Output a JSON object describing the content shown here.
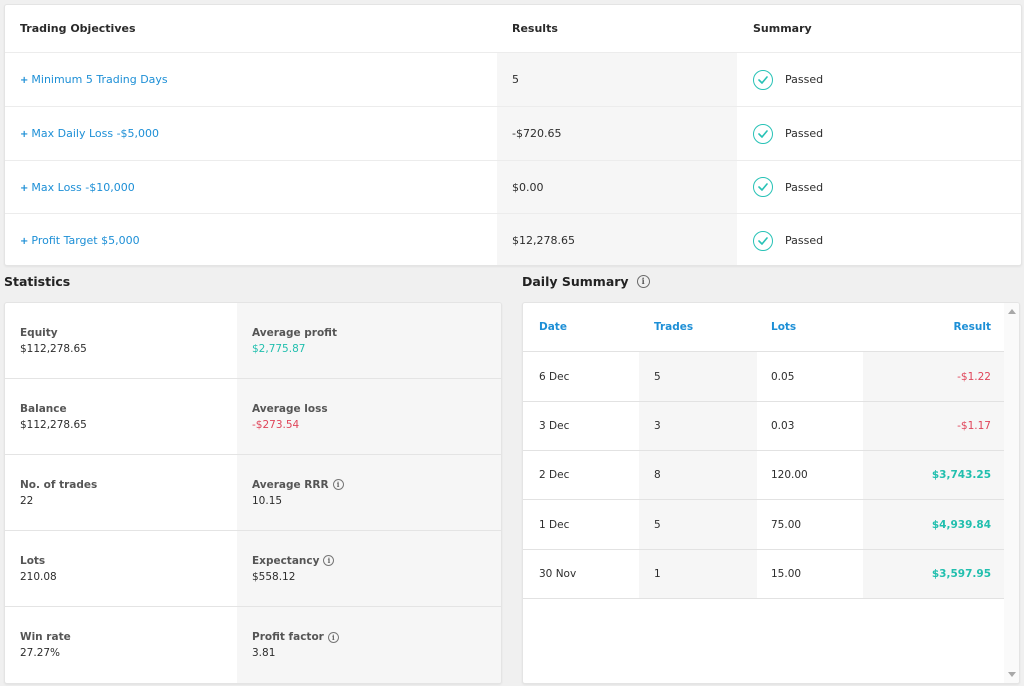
{
  "objectives": {
    "headers": {
      "objective": "Trading Objectives",
      "results": "Results",
      "summary": "Summary"
    },
    "rows": [
      {
        "objective": "Minimum 5 Trading Days",
        "result": "5",
        "summary": "Passed"
      },
      {
        "objective": "Max Daily Loss -$5,000",
        "result": "-$720.65",
        "summary": "Passed"
      },
      {
        "objective": "Max Loss -$10,000",
        "result": "$0.00",
        "summary": "Passed"
      },
      {
        "objective": "Profit Target $5,000",
        "result": "$12,278.65",
        "summary": "Passed"
      }
    ]
  },
  "statistics": {
    "title": "Statistics",
    "rows": [
      {
        "left_label": "Equity",
        "left_value": "$112,278.65",
        "right_label": "Average profit",
        "right_value": "$2,775.87"
      },
      {
        "left_label": "Balance",
        "left_value": "$112,278.65",
        "right_label": "Average loss",
        "right_value": "-$273.54"
      },
      {
        "left_label": "No. of trades",
        "left_value": "22",
        "right_label": "Average RRR",
        "right_value": "10.15"
      },
      {
        "left_label": "Lots",
        "left_value": "210.08",
        "right_label": "Expectancy",
        "right_value": "$558.12"
      },
      {
        "left_label": "Win rate",
        "left_value": "27.27%",
        "right_label": "Profit factor",
        "right_value": "3.81"
      }
    ]
  },
  "daily_summary": {
    "title": "Daily Summary",
    "headers": {
      "date": "Date",
      "trades": "Trades",
      "lots": "Lots",
      "result": "Result"
    },
    "rows": [
      {
        "date": "6 Dec",
        "trades": "5",
        "lots": "0.05",
        "result": "-$1.22"
      },
      {
        "date": "3 Dec",
        "trades": "3",
        "lots": "0.03",
        "result": "-$1.17"
      },
      {
        "date": "2 Dec",
        "trades": "8",
        "lots": "120.00",
        "result": "$3,743.25"
      },
      {
        "date": "1 Dec",
        "trades": "5",
        "lots": "75.00",
        "result": "$4,939.84"
      },
      {
        "date": "30 Nov",
        "trades": "1",
        "lots": "15.00",
        "result": "$3,597.95"
      }
    ]
  },
  "colors": {
    "link": "#1d8fd6",
    "positive": "#21bfae",
    "negative": "#e0455a",
    "check": "#27c2b6"
  },
  "icons": {
    "passed": "check-circle-icon",
    "info": "info-circle-icon",
    "objective_bullet": "plus-icon"
  }
}
